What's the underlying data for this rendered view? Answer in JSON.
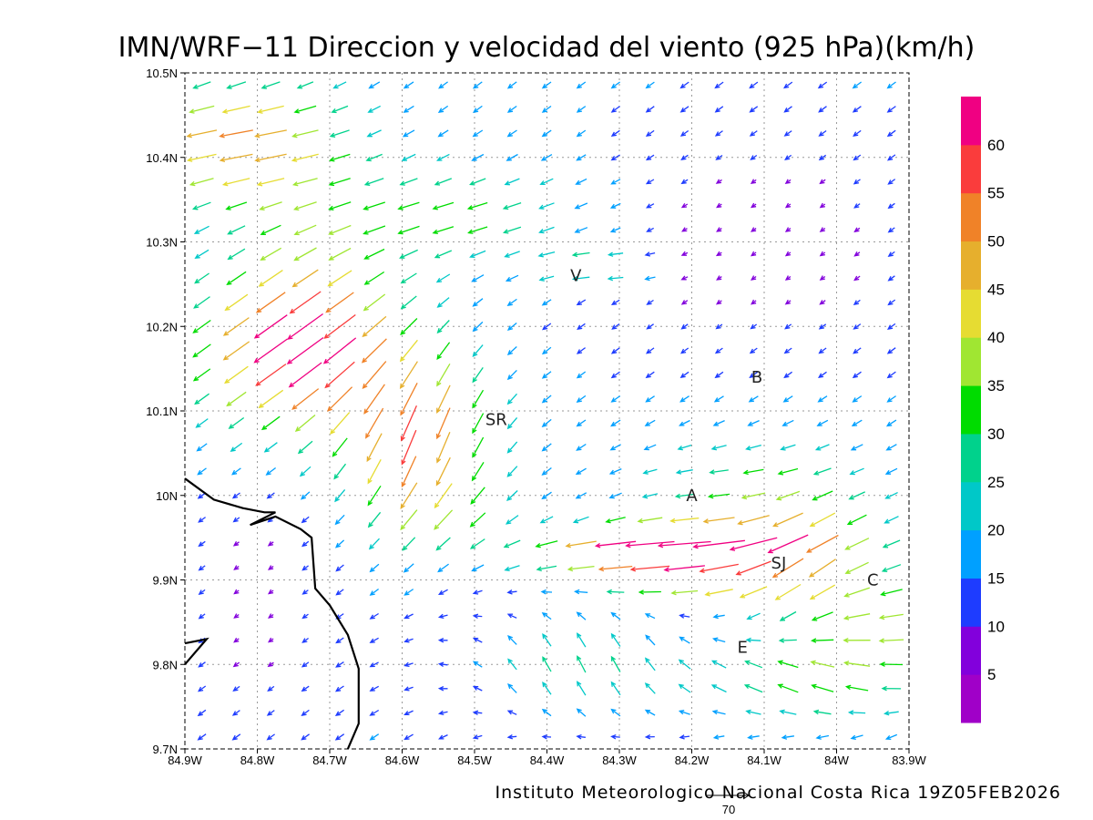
{
  "title": "IMN/WRF−11 Direccion y velocidad del viento (925 hPa)(km/h)",
  "footer": "Instituto Meteorologico Nacional Costa Rica 19Z05FEB2026",
  "reference_vector_label": "70",
  "x_ticks": [
    "84.9W",
    "84.8W",
    "84.7W",
    "84.6W",
    "84.5W",
    "84.4W",
    "84.3W",
    "84.2W",
    "84.1W",
    "84W",
    "83.9W"
  ],
  "y_ticks": [
    "10.5N",
    "10.4N",
    "10.3N",
    "10.2N",
    "10.1N",
    "10N",
    "9.9N",
    "9.8N",
    "9.7N"
  ],
  "place_labels": [
    {
      "text": "V",
      "lon": -84.36,
      "lat": 10.26
    },
    {
      "text": "B",
      "lon": -84.11,
      "lat": 10.14
    },
    {
      "text": "SR",
      "lon": -84.47,
      "lat": 10.09
    },
    {
      "text": "A",
      "lon": -84.2,
      "lat": 10.0
    },
    {
      "text": "SJ",
      "lon": -84.08,
      "lat": 9.92
    },
    {
      "text": "C",
      "lon": -83.95,
      "lat": 9.9
    },
    {
      "text": "E",
      "lon": -84.13,
      "lat": 9.82
    }
  ],
  "colorbar": {
    "labels": [
      "5",
      "10",
      "15",
      "20",
      "25",
      "30",
      "35",
      "40",
      "45",
      "50",
      "55",
      "60"
    ],
    "colors": [
      "#a000c8",
      "#8200dc",
      "#1e3cff",
      "#00a0ff",
      "#00c8c8",
      "#00d28c",
      "#00dc00",
      "#a0e632",
      "#e6dc32",
      "#e6af2d",
      "#f08228",
      "#fa3c3c",
      "#f00082"
    ]
  },
  "coastline": [
    [
      [
        -84.9,
        10.02
      ],
      [
        -84.86,
        9.995
      ],
      [
        -84.82,
        9.985
      ],
      [
        -84.79,
        9.98
      ],
      [
        -84.775,
        9.98
      ],
      [
        -84.81,
        9.965
      ],
      [
        -84.775,
        9.975
      ],
      [
        -84.74,
        9.96
      ],
      [
        -84.725,
        9.95
      ],
      [
        -84.72,
        9.89
      ],
      [
        -84.7,
        9.87
      ],
      [
        -84.675,
        9.835
      ],
      [
        -84.66,
        9.795
      ],
      [
        -84.66,
        9.73
      ],
      [
        -84.675,
        9.7
      ]
    ],
    [
      [
        -84.9,
        9.825
      ],
      [
        -84.87,
        9.83
      ],
      [
        -84.9,
        9.8
      ]
    ]
  ]
}
